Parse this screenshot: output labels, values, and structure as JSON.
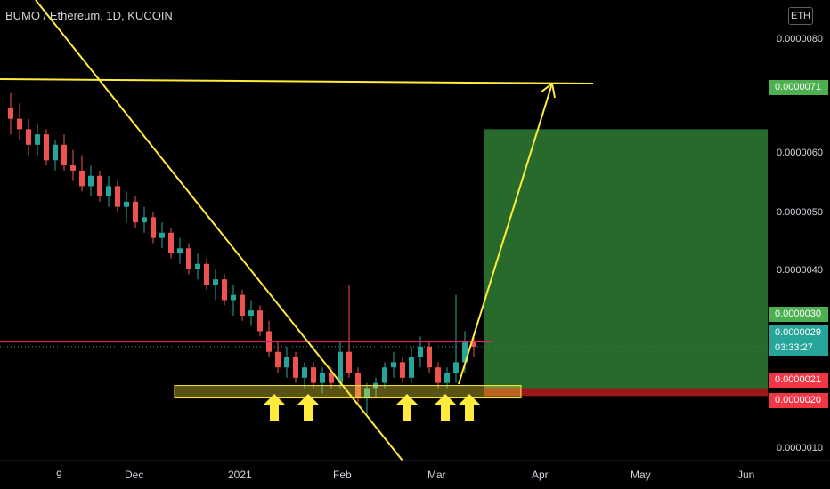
{
  "header": {
    "symbol_title": "BUMO / Ethereum, 1D, KUCOIN",
    "currency_badge": "ETH"
  },
  "price_axis": {
    "ticks": [
      "0.0000080",
      "0.0000060",
      "0.0000050",
      "0.0000040",
      "0.0000010"
    ]
  },
  "price_tags": {
    "target": {
      "text": "0.0000071",
      "color": "#4caf50"
    },
    "resistance": {
      "text": "0.0000030",
      "color": "#4caf50"
    },
    "current": {
      "text": "0.0000029",
      "color": "#26a69a"
    },
    "countdown": {
      "text": "03:33:27",
      "color": "#26a69a"
    },
    "entry": {
      "text": "0.0000021",
      "color": "#f23645"
    },
    "stop": {
      "text": "0.0000020",
      "color": "#f23645"
    }
  },
  "time_axis": {
    "labels": [
      "9",
      "Dec",
      "2021",
      "Feb",
      "Mar",
      "Apr",
      "May",
      "Jun"
    ]
  },
  "colors": {
    "bull": "#26a69a",
    "bear": "#ef5350",
    "drawing_yellow": "#ffeb3b",
    "support_line": "#e91e63",
    "target_zone": "#2e7d32",
    "stop_zone": "#b71c1c"
  },
  "chart_data": {
    "type": "candlestick",
    "x_labels": [
      "9",
      "Dec",
      "2021",
      "Feb",
      "Mar",
      "Apr",
      "May",
      "Jun"
    ],
    "y_ticks": [
      8e-06,
      6e-06,
      5e-06,
      4e-06,
      1e-06
    ],
    "ylim": [
      7e-07,
      8.6e-06
    ],
    "series": [
      {
        "values": [
          [
            7.5,
            7.8,
            7.0,
            7.3
          ],
          [
            7.3,
            7.6,
            6.9,
            7.1
          ],
          [
            7.1,
            7.3,
            6.6,
            6.8
          ],
          [
            6.8,
            7.2,
            6.6,
            7.0
          ],
          [
            7.0,
            7.1,
            6.4,
            6.5
          ],
          [
            6.5,
            6.9,
            6.3,
            6.8
          ],
          [
            6.8,
            7.0,
            6.3,
            6.4
          ],
          [
            6.4,
            6.7,
            6.1,
            6.3
          ],
          [
            6.3,
            6.6,
            5.9,
            6.0
          ],
          [
            6.0,
            6.4,
            5.8,
            6.2
          ],
          [
            6.2,
            6.3,
            5.7,
            5.8
          ],
          [
            5.8,
            6.2,
            5.6,
            6.0
          ],
          [
            6.0,
            6.1,
            5.5,
            5.6
          ],
          [
            5.6,
            5.9,
            5.3,
            5.7
          ],
          [
            5.7,
            5.8,
            5.2,
            5.3
          ],
          [
            5.3,
            5.6,
            5.1,
            5.4
          ],
          [
            5.4,
            5.5,
            4.9,
            5.0
          ],
          [
            5.0,
            5.3,
            4.8,
            5.1
          ],
          [
            5.1,
            5.2,
            4.6,
            4.7
          ],
          [
            4.7,
            5.0,
            4.5,
            4.8
          ],
          [
            4.8,
            4.9,
            4.3,
            4.4
          ],
          [
            4.4,
            4.7,
            4.2,
            4.5
          ],
          [
            4.5,
            4.6,
            4.0,
            4.1
          ],
          [
            4.1,
            4.4,
            3.8,
            4.2
          ],
          [
            4.2,
            4.3,
            3.7,
            3.8
          ],
          [
            3.8,
            4.1,
            3.5,
            3.9
          ],
          [
            3.9,
            4.0,
            3.4,
            3.5
          ],
          [
            3.5,
            3.8,
            3.3,
            3.6
          ],
          [
            3.6,
            3.7,
            3.1,
            3.2
          ],
          [
            3.2,
            3.4,
            2.7,
            2.8
          ],
          [
            2.8,
            3.0,
            2.4,
            2.5
          ],
          [
            2.5,
            2.9,
            2.3,
            2.7
          ],
          [
            2.7,
            2.8,
            2.2,
            2.3
          ],
          [
            2.3,
            2.6,
            2.1,
            2.5
          ],
          [
            2.5,
            2.6,
            2.1,
            2.2
          ],
          [
            2.2,
            2.5,
            2.0,
            2.4
          ],
          [
            2.4,
            2.5,
            2.1,
            2.2
          ],
          [
            2.2,
            3.0,
            2.1,
            2.8
          ],
          [
            2.8,
            4.1,
            2.3,
            2.4
          ],
          [
            2.4,
            2.5,
            1.8,
            1.9
          ],
          [
            1.9,
            2.2,
            1.6,
            2.1
          ],
          [
            2.1,
            2.3,
            1.9,
            2.2
          ],
          [
            2.2,
            2.6,
            2.1,
            2.5
          ],
          [
            2.5,
            2.8,
            2.3,
            2.6
          ],
          [
            2.6,
            2.7,
            2.2,
            2.3
          ],
          [
            2.3,
            2.9,
            2.2,
            2.7
          ],
          [
            2.7,
            3.1,
            2.5,
            2.9
          ],
          [
            2.9,
            3.0,
            2.4,
            2.5
          ],
          [
            2.5,
            2.6,
            2.1,
            2.2
          ],
          [
            2.2,
            2.5,
            2.1,
            2.4
          ],
          [
            2.4,
            3.9,
            2.2,
            2.6
          ],
          [
            2.6,
            3.2,
            2.4,
            3.0
          ],
          [
            3.0,
            3.1,
            2.7,
            2.9
          ]
        ]
      }
    ],
    "annotations": {
      "target_price": 7.1e-06,
      "resistance_line": 3e-06,
      "support_zone": [
        2e-06,
        2.1e-06
      ],
      "current_price": 2.9e-06
    }
  }
}
